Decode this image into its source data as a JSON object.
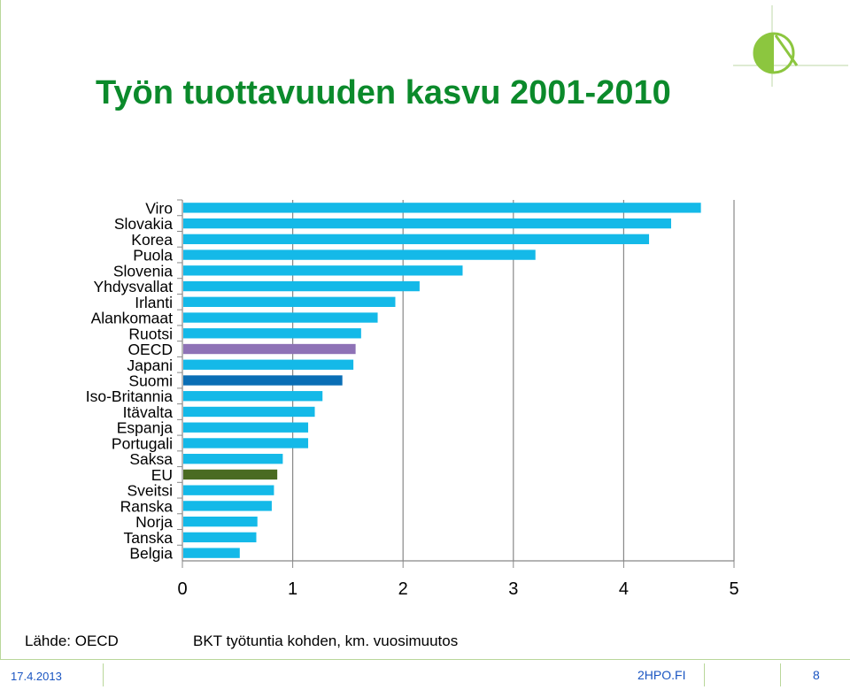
{
  "slide": {
    "title": "Työn tuottavuuden kasvu 2001-2010",
    "source": "Lähde: OECD",
    "footer_date": "17.4.2013",
    "footer_site": "2HPO.FI",
    "page_number": "8"
  },
  "colors": {
    "title": "#0b8a2b",
    "bar_default": "#14b9e8",
    "bar_oecd": "#8e72b6",
    "bar_suomi": "#0a6eb5",
    "bar_eu": "#4a6b22",
    "gridline": "#888888",
    "footer_text": "#1a55c2"
  },
  "chart_data": {
    "type": "bar",
    "orientation": "horizontal",
    "categories": [
      "Viro",
      "Slovakia",
      "Korea",
      "Puola",
      "Slovenia",
      "Yhdysvallat",
      "Irlanti",
      "Alankomaat",
      "Ruotsi",
      "OECD",
      "Japani",
      "Suomi",
      "Iso-Britannia",
      "Itävalta",
      "Espanja",
      "Portugali",
      "Saksa",
      "EU",
      "Sveitsi",
      "Ranska",
      "Norja",
      "Tanska",
      "Belgia"
    ],
    "values": [
      4.7,
      4.43,
      4.23,
      3.2,
      2.54,
      2.15,
      1.93,
      1.77,
      1.62,
      1.57,
      1.55,
      1.45,
      1.27,
      1.2,
      1.14,
      1.14,
      0.91,
      0.86,
      0.83,
      0.81,
      0.68,
      0.67,
      0.52
    ],
    "highlight": {
      "OECD": "bar_oecd",
      "Suomi": "bar_suomi",
      "EU": "bar_eu"
    },
    "xlabel": "BKT työtuntia kohden, km. vuosimuutos",
    "xlim": [
      0,
      5
    ],
    "xticks": [
      "0",
      "1",
      "2",
      "3",
      "4",
      "5"
    ],
    "grid": true,
    "legend": "none"
  }
}
